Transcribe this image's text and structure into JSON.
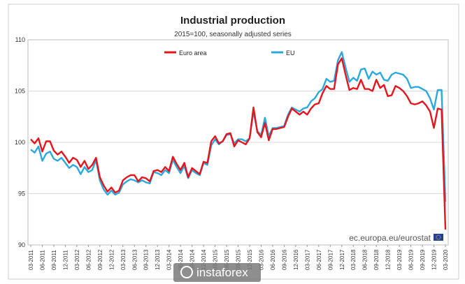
{
  "chart_data": {
    "type": "line",
    "title": "Industrial production",
    "subtitle": "2015=100, seasonally adjusted series",
    "xlabel": "",
    "ylabel": "",
    "ylim": [
      90,
      110
    ],
    "y_ticks": [
      90,
      95,
      100,
      105,
      110
    ],
    "grid": "horizontal",
    "legend": "top",
    "x_tick_labels": [
      "03-2011",
      "06-2011",
      "09-2011",
      "12-2011",
      "03-2012",
      "06-2012",
      "09-2012",
      "12-2012",
      "03-2013",
      "06-2013",
      "09-2013",
      "12-2013",
      "03-2014",
      "06-2014",
      "09-2014",
      "12-2014",
      "03-2015",
      "06-2015",
      "09-2015",
      "12-2015",
      "03-2016",
      "06-2016",
      "09-2016",
      "12-2016",
      "03-2017",
      "06-2017",
      "09-2017",
      "12-2017",
      "03-2018",
      "06-2018",
      "09-2018",
      "12-2018",
      "03-2019",
      "06-2019",
      "09-2019",
      "12-2019",
      "03-2020"
    ],
    "series": [
      {
        "name": "Euro area",
        "color": "#e8141c",
        "values": [
          100.3,
          99.9,
          100.4,
          99.1,
          100.1,
          100.1,
          99.2,
          98.8,
          99.1,
          98.6,
          98.0,
          98.5,
          98.3,
          97.6,
          98.2,
          97.4,
          97.8,
          98.5,
          96.6,
          95.8,
          95.2,
          95.6,
          95.1,
          95.3,
          96.3,
          96.6,
          96.8,
          96.8,
          96.2,
          96.6,
          96.5,
          96.2,
          97.2,
          97.3,
          97.1,
          97.6,
          97.2,
          98.6,
          97.9,
          97.3,
          98.0,
          96.6,
          97.5,
          97.2,
          96.9,
          98.1,
          98.0,
          100.1,
          100.6,
          99.9,
          100.1,
          100.8,
          100.9,
          99.6,
          100.2,
          100.0,
          99.8,
          100.4,
          103.4,
          101.0,
          100.5,
          101.9,
          100.2,
          101.3,
          101.3,
          101.4,
          101.5,
          102.5,
          103.3,
          103.0,
          102.7,
          103.0,
          102.7,
          103.3,
          103.7,
          103.8,
          104.8,
          105.5,
          105.2,
          105.2,
          107.6,
          108.2,
          106.6,
          105.1,
          105.3,
          105.2,
          106.1,
          105.2,
          105.2,
          105.0,
          106.1,
          105.3,
          105.6,
          104.5,
          104.6,
          105.5,
          105.3,
          105.0,
          104.5,
          103.8,
          103.7,
          103.8,
          104.0,
          103.6,
          103.0,
          101.4,
          103.3,
          103.2,
          91.5
        ]
      },
      {
        "name": "EU",
        "color": "#29a9e0",
        "values": [
          99.3,
          99.0,
          99.6,
          98.2,
          98.9,
          99.1,
          98.4,
          98.2,
          98.5,
          98.0,
          97.5,
          97.8,
          97.6,
          96.9,
          97.6,
          97.1,
          97.3,
          98.3,
          96.3,
          95.4,
          94.9,
          95.3,
          94.9,
          95.1,
          95.9,
          96.2,
          96.4,
          96.3,
          96.1,
          96.3,
          96.1,
          96.0,
          97.1,
          97.0,
          96.8,
          97.3,
          97.0,
          98.3,
          97.6,
          97.0,
          97.7,
          96.5,
          97.3,
          97.0,
          96.8,
          98.0,
          97.8,
          99.7,
          100.3,
          99.8,
          100.1,
          100.7,
          100.8,
          99.9,
          100.3,
          100.3,
          100.1,
          100.4,
          103.0,
          101.1,
          100.7,
          102.4,
          100.6,
          101.4,
          101.4,
          101.5,
          101.6,
          102.7,
          103.4,
          103.2,
          103.0,
          103.3,
          103.4,
          104.0,
          104.3,
          104.9,
          105.2,
          106.2,
          105.9,
          106.0,
          108.0,
          108.8,
          107.3,
          105.9,
          106.3,
          106.0,
          107.1,
          107.2,
          106.2,
          106.9,
          106.6,
          106.8,
          106.1,
          106.0,
          106.6,
          106.8,
          106.7,
          106.6,
          106.2,
          105.3,
          105.4,
          105.4,
          105.2,
          105.0,
          104.3,
          103.2,
          105.1,
          105.1,
          94.2
        ]
      }
    ],
    "annotation": "ec.europa.eu/eurostat",
    "watermark": "instaforex"
  }
}
